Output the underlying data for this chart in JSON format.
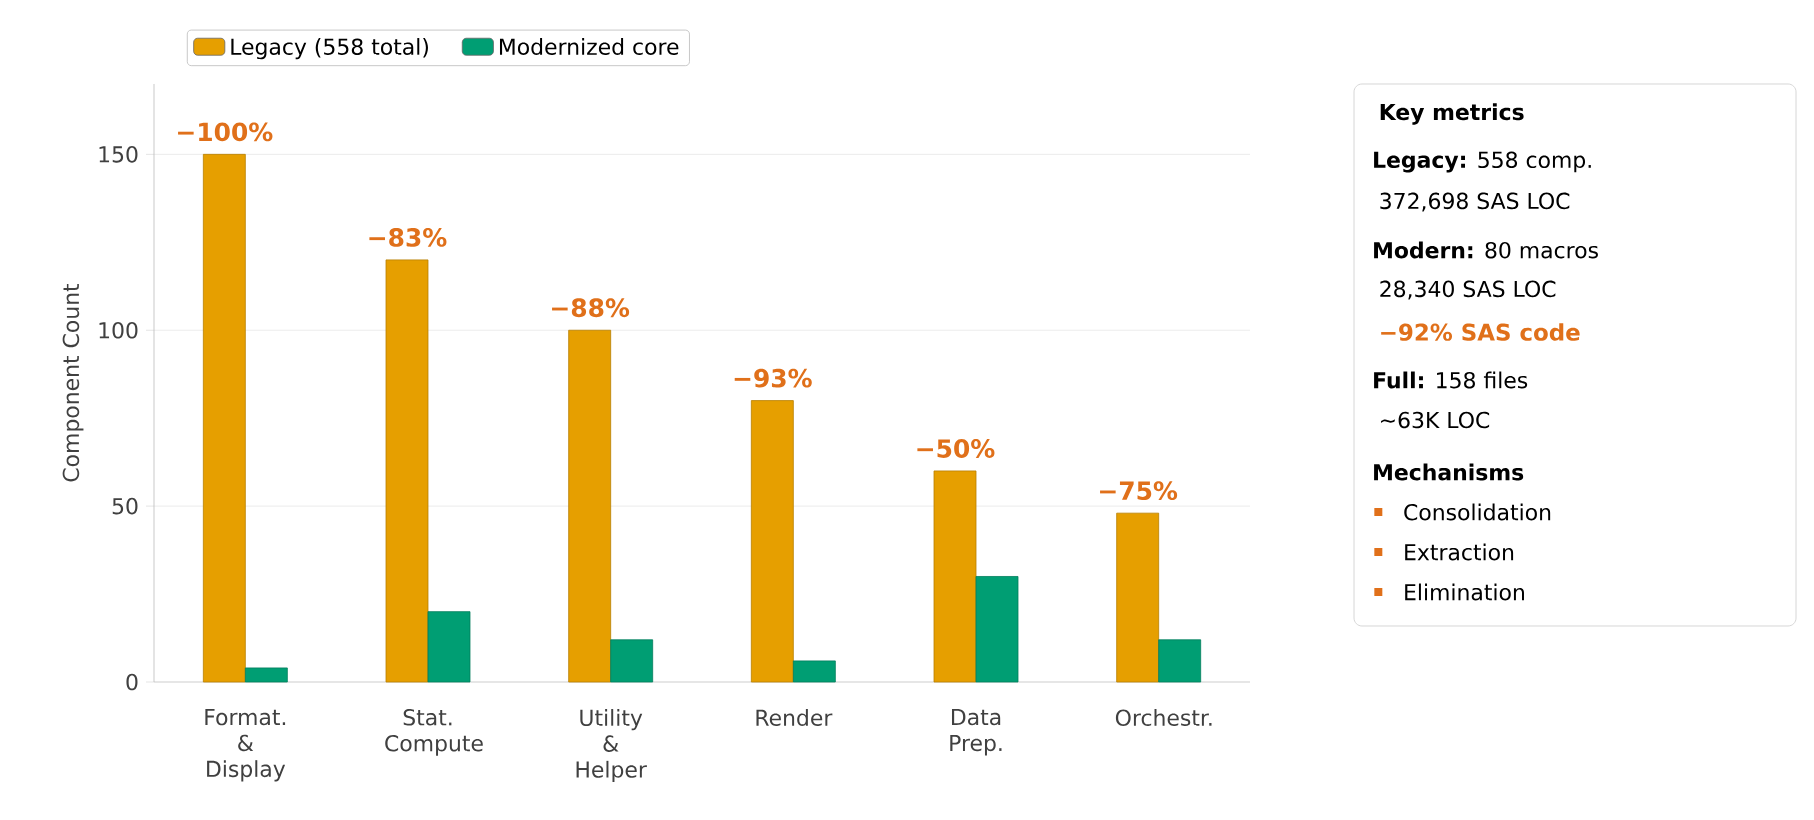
{
  "chart_data": [
    {
      "type": "bar",
      "ylabel": "Component Count",
      "categories": [
        "Format. & Display",
        "Stat. Compute",
        "Utility & Helper",
        "Render",
        "Data Prep.",
        "Orchestr."
      ],
      "series": [
        {
          "name": "Legacy (558 total)",
          "color": "#e69f00",
          "values": [
            150,
            120,
            100,
            80,
            60,
            48
          ]
        },
        {
          "name": "Modernized core",
          "color": "#009e73",
          "values": [
            4,
            20,
            12,
            6,
            30,
            12
          ]
        }
      ],
      "ylim": [
        0,
        170
      ],
      "yticks": [
        0,
        50,
        100,
        150
      ],
      "grid": "y",
      "legend": "top",
      "annotations": [
        {
          "text": "−100%",
          "x": "Format. & Display",
          "y": 150
        },
        {
          "text": "−83%",
          "x": "Stat. Compute",
          "y": 120
        },
        {
          "text": "−88%",
          "x": "Utility & Helper",
          "y": 100
        },
        {
          "text": "−93%",
          "x": "Render",
          "y": 80
        },
        {
          "text": "−50%",
          "x": "Data Prep.",
          "y": 60
        },
        {
          "text": "−75%",
          "x": "Orchestr.",
          "y": 48
        }
      ]
    },
    {
      "type": "other",
      "title": "Key metrics",
      "annotations": [
        "**Legacy:** 558 comp.",
        "372,698 SAS LOC",
        "**Modern:** 80 macros",
        "28,340 SAS LOC",
        "−92% SAS code",
        "**Full:** 158 files",
        "∼63K LOC",
        "Mechanisms",
        "Consolidation",
        "Extraction",
        "Elimination"
      ]
    }
  ]
}
